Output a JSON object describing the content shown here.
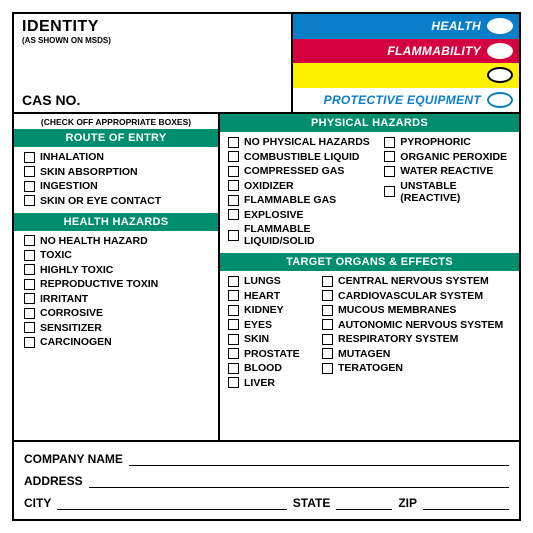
{
  "colors": {
    "section_header_bg": "#008e6f",
    "health_bg": "#0b7ec9",
    "flammability_bg": "#d5003f",
    "reactivity_bg": "#fff200",
    "protective_text": "#0b7ec9",
    "border": "#000000",
    "background": "#ffffff"
  },
  "identity": {
    "title": "IDENTITY",
    "subtitle": "(AS SHOWN ON MSDS)",
    "cas_label": "CAS NO."
  },
  "nfpa": {
    "health": "HEALTH",
    "flammability": "FLAMMABILITY",
    "reactivity": "",
    "protective": "PROTECTIVE EQUIPMENT"
  },
  "left": {
    "check_note": "(CHECK OFF APPROPRIATE BOXES)",
    "route_hdr": "ROUTE OF ENTRY",
    "route_items": [
      "INHALATION",
      "SKIN ABSORPTION",
      "INGESTION",
      "SKIN OR EYE CONTACT"
    ],
    "health_hdr": "HEALTH HAZARDS",
    "health_items": [
      "NO HEALTH HAZARD",
      "TOXIC",
      "HIGHLY TOXIC",
      "REPRODUCTIVE TOXIN",
      "IRRITANT",
      "CORROSIVE",
      "SENSITIZER",
      "CARCINOGEN"
    ]
  },
  "right": {
    "phys_hdr": "PHYSICAL HAZARDS",
    "phys_col1": [
      "NO PHYSICAL HAZARDS",
      "COMBUSTIBLE LIQUID",
      "COMPRESSED GAS",
      "OXIDIZER",
      "FLAMMABLE GAS",
      "EXPLOSIVE",
      "FLAMMABLE LIQUID/SOLID"
    ],
    "phys_col2": [
      "PYROPHORIC",
      "ORGANIC PEROXIDE",
      "WATER REACTIVE",
      "UNSTABLE (REACTIVE)"
    ],
    "target_hdr": "TARGET ORGANS & EFFECTS",
    "target_col1": [
      "LUNGS",
      "HEART",
      "KIDNEY",
      "EYES",
      "SKIN",
      "PROSTATE",
      "BLOOD",
      "LIVER"
    ],
    "target_col2": [
      "CENTRAL NERVOUS SYSTEM",
      "CARDIOVASCULAR SYSTEM",
      "MUCOUS MEMBRANES",
      "AUTONOMIC NERVOUS SYSTEM",
      "RESPIRATORY SYSTEM",
      "MUTAGEN",
      "TERATOGEN"
    ]
  },
  "bottom": {
    "company": "COMPANY NAME",
    "address": "ADDRESS",
    "city": "CITY",
    "state": "STATE",
    "zip": "ZIP"
  }
}
